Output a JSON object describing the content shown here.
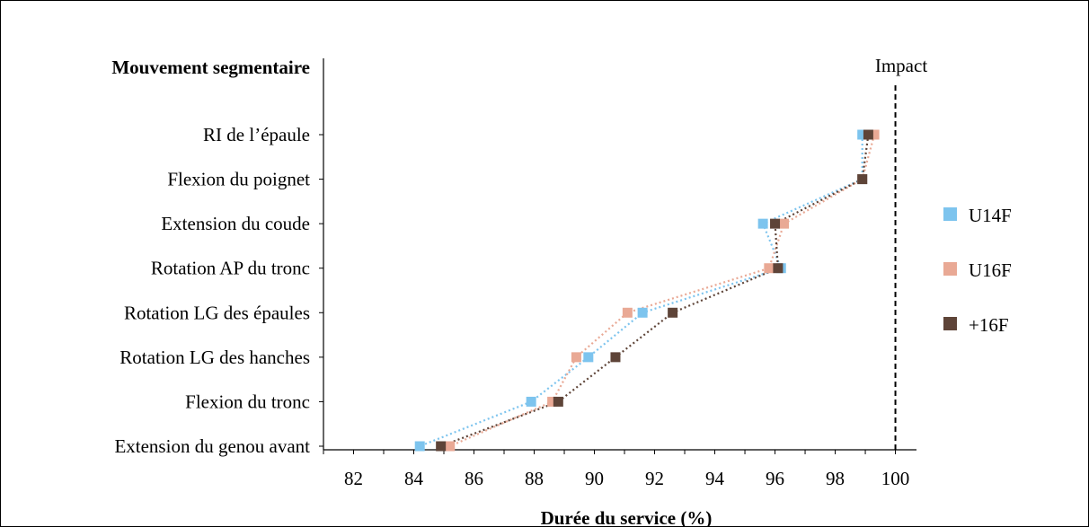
{
  "chart_data": {
    "type": "scatter",
    "ylabel": "Mouvement segmentaire",
    "xlabel": "Durée du service (%)",
    "annotation": "Impact",
    "impact_x": 100,
    "xlim": [
      81,
      100.7
    ],
    "xticks": [
      82,
      84,
      86,
      88,
      90,
      92,
      94,
      96,
      98,
      100
    ],
    "categories": [
      "RI de l’épaule",
      "Flexion du poignet",
      "Extension du coude",
      "Rotation AP du tronc",
      "Rotation  LG des épaules",
      "Rotation  LG des hanches",
      "Flexion du tronc",
      "Extension du genou avant"
    ],
    "series": [
      {
        "name": "U14F",
        "color": "#7dc4ee",
        "values": [
          98.9,
          98.9,
          95.6,
          96.2,
          91.6,
          89.8,
          87.9,
          84.2
        ]
      },
      {
        "name": "U16F",
        "color": "#e9a995",
        "values": [
          99.3,
          98.9,
          96.3,
          95.8,
          91.1,
          89.4,
          88.6,
          85.2
        ]
      },
      {
        "name": "+16F",
        "color": "#5e4438",
        "values": [
          99.1,
          98.9,
          96.0,
          96.1,
          92.6,
          90.7,
          88.8,
          84.9
        ]
      }
    ],
    "grid": false,
    "legend_position": "right"
  }
}
